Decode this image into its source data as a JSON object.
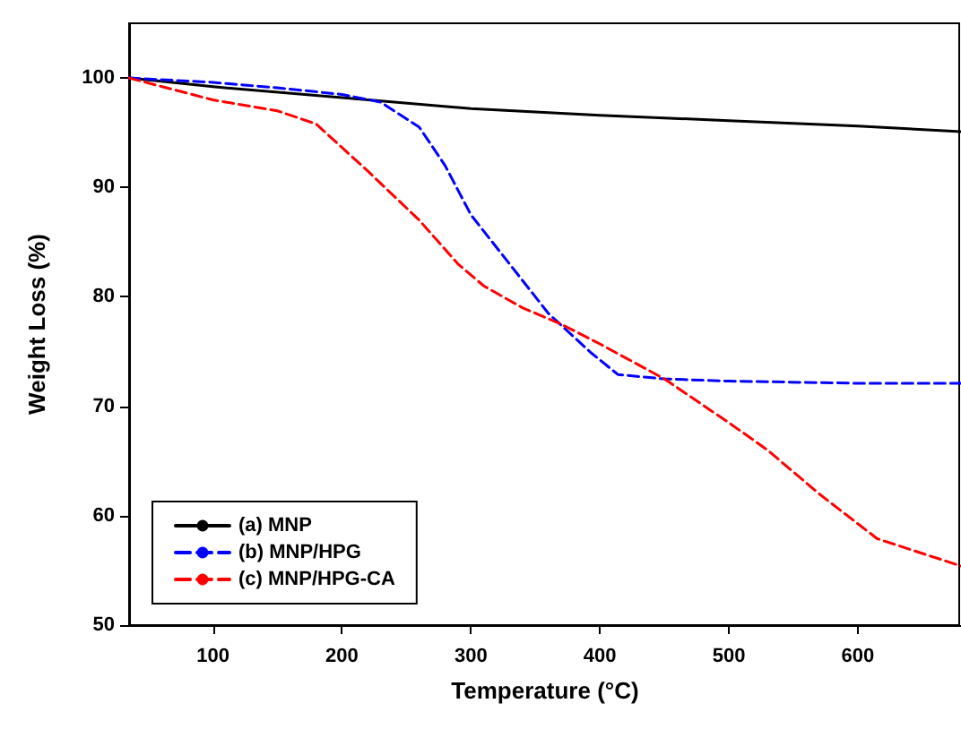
{
  "chart_data": {
    "type": "line",
    "xlabel": "Temperature (°C)",
    "ylabel": "Weight Loss (%)",
    "xlim": [
      35,
      680
    ],
    "ylim": [
      50,
      105
    ],
    "xticks": [
      100,
      200,
      300,
      400,
      500,
      600
    ],
    "yticks": [
      50,
      60,
      70,
      80,
      90,
      100
    ],
    "grid": false,
    "legend": "bottom left",
    "marker": "none",
    "series": [
      {
        "name": "(a) MNP",
        "color": "#000000",
        "line_style": "solid",
        "x": [
          35,
          100,
          200,
          300,
          400,
          500,
          600,
          680
        ],
        "values": [
          100,
          99.2,
          98.2,
          97.2,
          96.6,
          96.1,
          95.6,
          95.1
        ]
      },
      {
        "name": "(b) MNP/HPG",
        "color": "#0000ff",
        "line_style": "dashed",
        "x": [
          35,
          100,
          150,
          200,
          230,
          260,
          280,
          300,
          330,
          360,
          393,
          414,
          450,
          500,
          600,
          680
        ],
        "values": [
          100,
          99.6,
          99.1,
          98.5,
          97.8,
          95.5,
          92,
          87.5,
          83,
          78.5,
          74.9,
          72.9,
          72.5,
          72.3,
          72.1,
          72.1
        ]
      },
      {
        "name": "(c) MNP/HPG-CA",
        "color": "#ff0000",
        "line_style": "dashed",
        "x": [
          35,
          100,
          150,
          180,
          220,
          260,
          290,
          310,
          340,
          370,
          400,
          450,
          500,
          530,
          570,
          615,
          680
        ],
        "values": [
          100,
          98,
          97,
          95.8,
          91.5,
          87,
          83,
          81,
          79,
          77.5,
          75.7,
          72.5,
          68.5,
          66,
          62,
          57.9,
          55.4
        ]
      }
    ]
  }
}
